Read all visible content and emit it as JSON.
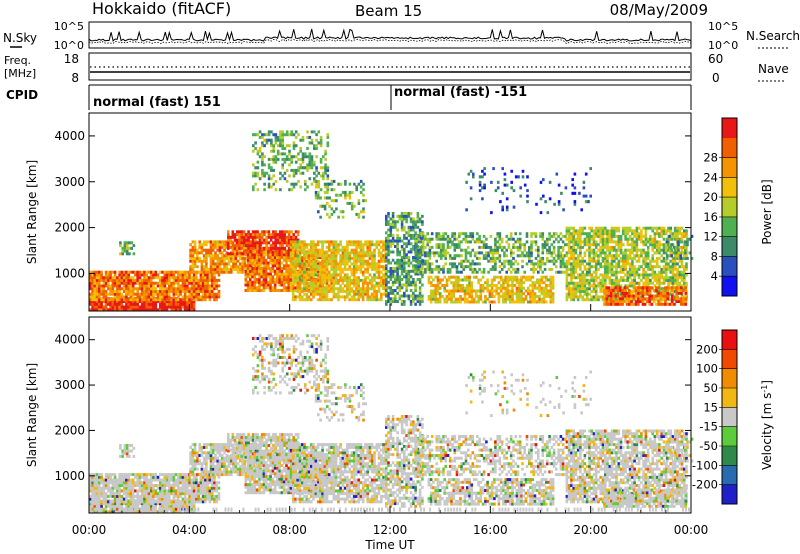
{
  "header": {
    "title": "Hokkaido (fitACF)",
    "beam": "Beam 15",
    "date": "08/May/2009"
  },
  "noise_panel": {
    "left_label": "N.Sky",
    "left_ticks": [
      "10^5",
      "10^0"
    ],
    "right_ticks": [
      "10^5",
      "10^0"
    ],
    "right_label": "N.Search"
  },
  "freq_panel": {
    "left_label_1": "Freq.",
    "left_label_2": "[MHz]",
    "left_ticks": [
      "18",
      "8"
    ],
    "right_ticks": [
      "60",
      "0"
    ],
    "right_label": "Nave"
  },
  "cpid_panel": {
    "label": "CPID",
    "segments": [
      "normal (fast) 151",
      "normal (fast) -151"
    ]
  },
  "chart_data": [
    {
      "type": "heatmap",
      "name": "power",
      "ylabel": "Slant Range [km]",
      "ylim": [
        180,
        4500
      ],
      "yticks": [
        "1000",
        "2000",
        "3000",
        "4000"
      ],
      "xlim": [
        0,
        24
      ],
      "colorbar": {
        "label": "Power [dB]",
        "ticks": [
          "4",
          "8",
          "12",
          "16",
          "20",
          "24",
          "28"
        ],
        "colors": [
          "#1010f0",
          "#2a50c0",
          "#3c8a6a",
          "#4fb050",
          "#b6cc2a",
          "#f2c00a",
          "#f59400",
          "#f06000",
          "#e81818"
        ]
      }
    },
    {
      "type": "heatmap",
      "name": "velocity",
      "ylabel": "Slant Range [km]",
      "ylim": [
        180,
        4500
      ],
      "yticks": [
        "1000",
        "2000",
        "3000",
        "4000"
      ],
      "xlim": [
        0,
        24
      ],
      "colorbar": {
        "label": "Velocity [m s",
        "label_sup": "-1",
        "label_end": "]",
        "ticks": [
          "200",
          "100",
          "50",
          "15",
          "-15",
          "-50",
          "-100",
          "-200"
        ],
        "colors": [
          "#2020c8",
          "#2a6ab0",
          "#2f8a4a",
          "#5ccc3a",
          "#c8c8c8",
          "#f0b810",
          "#f08c00",
          "#f04a00",
          "#e81010"
        ]
      }
    }
  ],
  "x_axis": {
    "ticks": [
      "00:00",
      "04:00",
      "08:00",
      "12:00",
      "16:00",
      "20:00",
      "00:00"
    ],
    "label": "Time UT"
  }
}
